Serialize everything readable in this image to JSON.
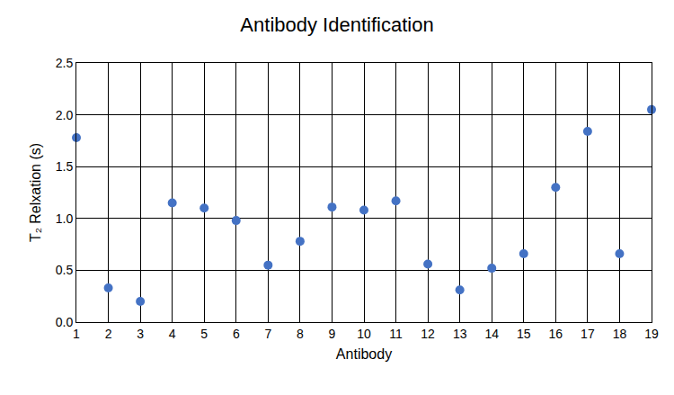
{
  "chart_data": {
    "type": "scatter",
    "title": "Antibody Identification",
    "x_label": "Antibody",
    "y_label": "T₂ Relxation (s)",
    "x": [
      1,
      2,
      3,
      4,
      5,
      6,
      7,
      8,
      9,
      10,
      11,
      12,
      13,
      14,
      15,
      16,
      17,
      18,
      19
    ],
    "values": [
      1.78,
      0.33,
      0.2,
      1.15,
      1.1,
      0.98,
      0.55,
      0.78,
      1.11,
      1.08,
      1.17,
      0.56,
      0.31,
      0.52,
      0.66,
      1.3,
      1.84,
      0.66,
      2.05
    ],
    "color": "#4472c4",
    "marker": "circle",
    "xlim": [
      1,
      19
    ],
    "xticks": [
      1,
      2,
      3,
      4,
      5,
      6,
      7,
      8,
      9,
      10,
      11,
      12,
      13,
      14,
      15,
      16,
      17,
      18,
      19
    ],
    "ylim": [
      0,
      2.5
    ],
    "yticks": [
      {
        "value": 0,
        "label": "0.0"
      },
      0.5,
      {
        "value": 1,
        "label": "1.0"
      },
      1.5,
      {
        "value": 2,
        "label": "2.0"
      },
      2.5
    ],
    "grid": true
  }
}
